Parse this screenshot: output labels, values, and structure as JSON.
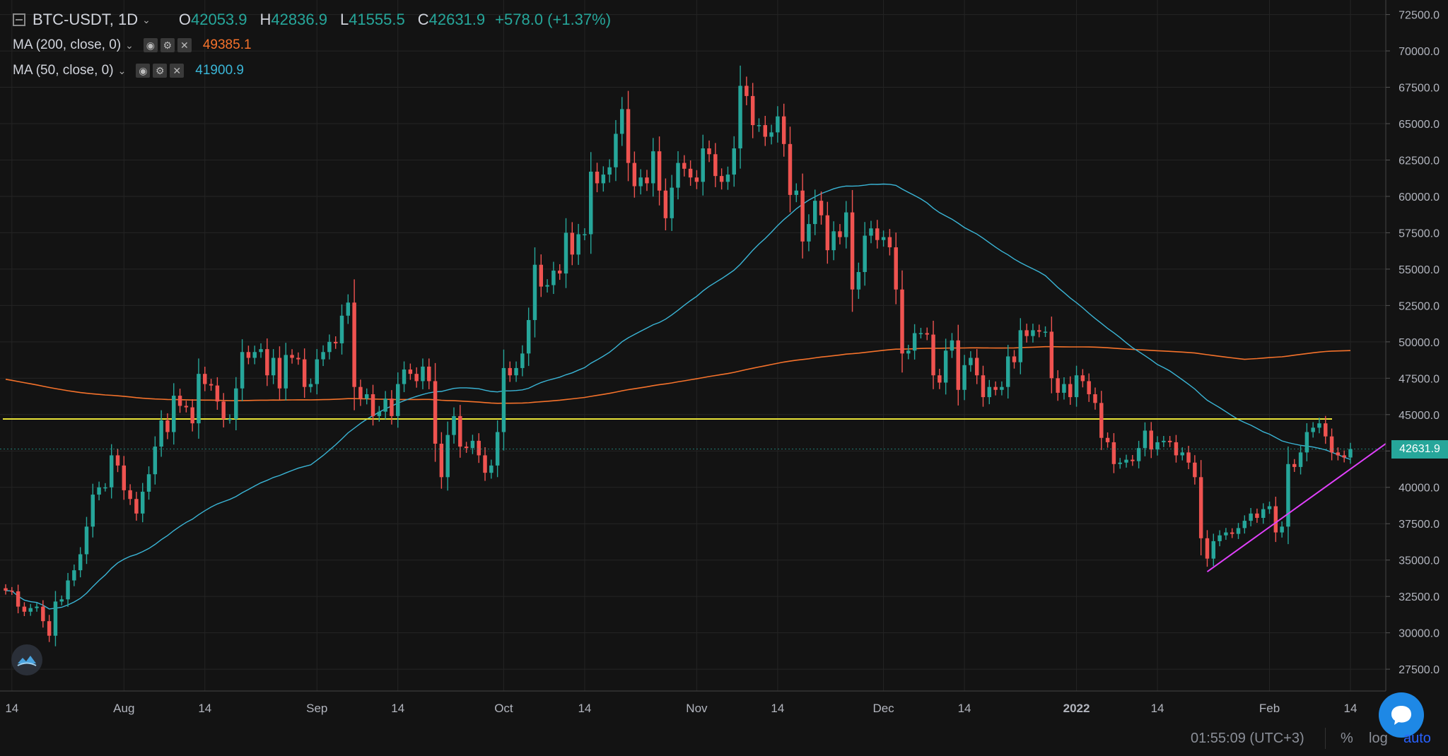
{
  "header": {
    "symbol": "BTC-USDT, 1D",
    "ohlc": [
      {
        "label": "O",
        "value": "42053.9"
      },
      {
        "label": "H",
        "value": "42836.9"
      },
      {
        "label": "L",
        "value": "41555.5"
      },
      {
        "label": "C",
        "value": "42631.9"
      }
    ],
    "change": "+578.0 (+1.37%)"
  },
  "indicators": [
    {
      "label": "MA (200, close, 0)",
      "value": "49385.1",
      "color": "#f5722b"
    },
    {
      "label": "MA (50, close, 0)",
      "value": "41900.9",
      "color": "#3ab5d6"
    }
  ],
  "last_price_tag": "42631.9",
  "footer": {
    "time": "01:55:09 (UTC+3)",
    "percent_label": "%",
    "log_label": "log",
    "auto_label": "auto"
  },
  "colors": {
    "up": "#26a69a",
    "down": "#ef5350",
    "background": "#131313",
    "ma200": "#f5722b",
    "ma50": "#3ab5d6",
    "level": "#e8e337",
    "trendline": "#e040fb"
  },
  "icons": {
    "logo": "app-logo-icon",
    "chat": "chat-bubble-icon",
    "settings": "gear-icon"
  },
  "chart_data": {
    "type": "candlestick",
    "timeframe": "1D",
    "x_tick_labels": [
      "14",
      "Aug",
      "14",
      "Sep",
      "14",
      "Oct",
      "14",
      "Nov",
      "14",
      "Dec",
      "14",
      "2022",
      "14",
      "Feb",
      "14"
    ],
    "x_tick_dates": [
      "2021-07-14",
      "2021-08-01",
      "2021-08-14",
      "2021-09-01",
      "2021-09-14",
      "2021-10-01",
      "2021-10-14",
      "2021-11-01",
      "2021-11-14",
      "2021-12-01",
      "2021-12-14",
      "2022-01-01",
      "2022-01-14",
      "2022-02-01",
      "2022-02-14"
    ],
    "y_tick_labels": [
      "27500.0",
      "30000.0",
      "32500.0",
      "35000.0",
      "37500.0",
      "40000.0",
      "42500.0",
      "45000.0",
      "47500.0",
      "50000.0",
      "52500.0",
      "55000.0",
      "57500.0",
      "60000.0",
      "62500.0",
      "65000.0",
      "67500.0",
      "70000.0",
      "72500.0"
    ],
    "ylim": [
      26000,
      73500
    ],
    "horizontal_level": 44700,
    "last_close": 42631.9,
    "closes": [
      [
        "2021-07-13",
        32900
      ],
      [
        "2021-07-14",
        32850
      ],
      [
        "2021-07-15",
        31800
      ],
      [
        "2021-07-16",
        31450
      ],
      [
        "2021-07-17",
        31700
      ],
      [
        "2021-07-18",
        31800
      ],
      [
        "2021-07-19",
        30800
      ],
      [
        "2021-07-20",
        29800
      ],
      [
        "2021-07-21",
        32150
      ],
      [
        "2021-07-22",
        32300
      ],
      [
        "2021-07-23",
        33600
      ],
      [
        "2021-07-24",
        34300
      ],
      [
        "2021-07-25",
        35400
      ],
      [
        "2021-07-26",
        37300
      ],
      [
        "2021-07-27",
        39500
      ],
      [
        "2021-07-28",
        40000
      ],
      [
        "2021-07-29",
        40000
      ],
      [
        "2021-07-30",
        42200
      ],
      [
        "2021-07-31",
        41500
      ],
      [
        "2021-08-01",
        39800
      ],
      [
        "2021-08-02",
        39200
      ],
      [
        "2021-08-03",
        38200
      ],
      [
        "2021-08-04",
        39700
      ],
      [
        "2021-08-05",
        40900
      ],
      [
        "2021-08-06",
        42800
      ],
      [
        "2021-08-07",
        44600
      ],
      [
        "2021-08-08",
        43800
      ],
      [
        "2021-08-09",
        46300
      ],
      [
        "2021-08-10",
        45600
      ],
      [
        "2021-08-11",
        45500
      ],
      [
        "2021-08-12",
        44400
      ],
      [
        "2021-08-13",
        47800
      ],
      [
        "2021-08-14",
        47100
      ],
      [
        "2021-08-15",
        47000
      ],
      [
        "2021-08-16",
        45900
      ],
      [
        "2021-08-17",
        44700
      ],
      [
        "2021-08-18",
        44700
      ],
      [
        "2021-08-19",
        46800
      ],
      [
        "2021-08-20",
        49300
      ],
      [
        "2021-08-21",
        48900
      ],
      [
        "2021-08-22",
        49300
      ],
      [
        "2021-08-23",
        49500
      ],
      [
        "2021-08-24",
        47700
      ],
      [
        "2021-08-25",
        48900
      ],
      [
        "2021-08-26",
        46800
      ],
      [
        "2021-08-27",
        49100
      ],
      [
        "2021-08-28",
        48900
      ],
      [
        "2021-08-29",
        48800
      ],
      [
        "2021-08-30",
        46900
      ],
      [
        "2021-08-31",
        47100
      ],
      [
        "2021-09-01",
        48800
      ],
      [
        "2021-09-02",
        49300
      ],
      [
        "2021-09-03",
        50000
      ],
      [
        "2021-09-04",
        49900
      ],
      [
        "2021-09-05",
        51800
      ],
      [
        "2021-09-06",
        52700
      ],
      [
        "2021-09-07",
        46900
      ],
      [
        "2021-09-08",
        46100
      ],
      [
        "2021-09-09",
        46400
      ],
      [
        "2021-09-10",
        44900
      ],
      [
        "2021-09-11",
        45200
      ],
      [
        "2021-09-12",
        46100
      ],
      [
        "2021-09-13",
        44900
      ],
      [
        "2021-09-14",
        47100
      ],
      [
        "2021-09-15",
        48100
      ],
      [
        "2021-09-16",
        47800
      ],
      [
        "2021-09-17",
        47300
      ],
      [
        "2021-09-18",
        48300
      ],
      [
        "2021-09-19",
        47300
      ],
      [
        "2021-09-20",
        43000
      ],
      [
        "2021-09-21",
        40700
      ],
      [
        "2021-09-22",
        43600
      ],
      [
        "2021-09-23",
        44900
      ],
      [
        "2021-09-24",
        42800
      ],
      [
        "2021-09-25",
        42700
      ],
      [
        "2021-09-26",
        43200
      ],
      [
        "2021-09-27",
        42200
      ],
      [
        "2021-09-28",
        41000
      ],
      [
        "2021-09-29",
        41500
      ],
      [
        "2021-09-30",
        43800
      ],
      [
        "2021-10-01",
        48200
      ],
      [
        "2021-10-02",
        47700
      ],
      [
        "2021-10-03",
        48200
      ],
      [
        "2021-10-04",
        49200
      ],
      [
        "2021-10-05",
        51500
      ],
      [
        "2021-10-06",
        55300
      ],
      [
        "2021-10-07",
        53800
      ],
      [
        "2021-10-08",
        53900
      ],
      [
        "2021-10-09",
        54900
      ],
      [
        "2021-10-10",
        54700
      ],
      [
        "2021-10-11",
        57500
      ],
      [
        "2021-10-12",
        56000
      ],
      [
        "2021-10-13",
        57400
      ],
      [
        "2021-10-14",
        57400
      ],
      [
        "2021-10-15",
        61700
      ],
      [
        "2021-10-16",
        60900
      ],
      [
        "2021-10-17",
        61500
      ],
      [
        "2021-10-18",
        62000
      ],
      [
        "2021-10-19",
        64300
      ],
      [
        "2021-10-20",
        66000
      ],
      [
        "2021-10-21",
        62300
      ],
      [
        "2021-10-22",
        60700
      ],
      [
        "2021-10-23",
        61300
      ],
      [
        "2021-10-24",
        60900
      ],
      [
        "2021-10-25",
        63100
      ],
      [
        "2021-10-26",
        60400
      ],
      [
        "2021-10-27",
        58500
      ],
      [
        "2021-10-28",
        60600
      ],
      [
        "2021-10-29",
        62300
      ],
      [
        "2021-10-30",
        61900
      ],
      [
        "2021-10-31",
        61300
      ],
      [
        "2021-11-01",
        61000
      ],
      [
        "2021-11-02",
        63300
      ],
      [
        "2021-11-03",
        62900
      ],
      [
        "2021-11-04",
        61400
      ],
      [
        "2021-11-05",
        61000
      ],
      [
        "2021-11-06",
        61500
      ],
      [
        "2021-11-07",
        63300
      ],
      [
        "2021-11-08",
        67600
      ],
      [
        "2021-11-09",
        66900
      ],
      [
        "2021-11-10",
        64900
      ],
      [
        "2021-11-11",
        64900
      ],
      [
        "2021-11-12",
        64100
      ],
      [
        "2021-11-13",
        64400
      ],
      [
        "2021-11-14",
        65500
      ],
      [
        "2021-11-15",
        63600
      ],
      [
        "2021-11-16",
        60100
      ],
      [
        "2021-11-17",
        60400
      ],
      [
        "2021-11-18",
        56900
      ],
      [
        "2021-11-19",
        58100
      ],
      [
        "2021-11-20",
        59700
      ],
      [
        "2021-11-21",
        58700
      ],
      [
        "2021-11-22",
        56300
      ],
      [
        "2021-11-23",
        57600
      ],
      [
        "2021-11-24",
        57200
      ],
      [
        "2021-11-25",
        58900
      ],
      [
        "2021-11-26",
        53600
      ],
      [
        "2021-11-27",
        54800
      ],
      [
        "2021-11-28",
        57300
      ],
      [
        "2021-11-29",
        57800
      ],
      [
        "2021-11-30",
        57000
      ],
      [
        "2021-12-01",
        57200
      ],
      [
        "2021-12-02",
        56500
      ],
      [
        "2021-12-03",
        53600
      ],
      [
        "2021-12-04",
        49200
      ],
      [
        "2021-12-05",
        49400
      ],
      [
        "2021-12-06",
        50600
      ],
      [
        "2021-12-07",
        50600
      ],
      [
        "2021-12-08",
        50500
      ],
      [
        "2021-12-09",
        47700
      ],
      [
        "2021-12-10",
        47200
      ],
      [
        "2021-12-11",
        49400
      ],
      [
        "2021-12-12",
        50100
      ],
      [
        "2021-12-13",
        46700
      ],
      [
        "2021-12-14",
        48400
      ],
      [
        "2021-12-15",
        48900
      ],
      [
        "2021-12-16",
        47700
      ],
      [
        "2021-12-17",
        46200
      ],
      [
        "2021-12-18",
        46900
      ],
      [
        "2021-12-19",
        46700
      ],
      [
        "2021-12-20",
        46900
      ],
      [
        "2021-12-21",
        49000
      ],
      [
        "2021-12-22",
        48600
      ],
      [
        "2021-12-23",
        50800
      ],
      [
        "2021-12-24",
        50400
      ],
      [
        "2021-12-25",
        50800
      ],
      [
        "2021-12-26",
        50700
      ],
      [
        "2021-12-27",
        50700
      ],
      [
        "2021-12-28",
        47500
      ],
      [
        "2021-12-29",
        46500
      ],
      [
        "2021-12-30",
        47100
      ],
      [
        "2021-12-31",
        46200
      ],
      [
        "2022-01-01",
        47700
      ],
      [
        "2022-01-02",
        47300
      ],
      [
        "2022-01-03",
        46400
      ],
      [
        "2022-01-04",
        45800
      ],
      [
        "2022-01-05",
        43400
      ],
      [
        "2022-01-06",
        43100
      ],
      [
        "2022-01-07",
        41600
      ],
      [
        "2022-01-08",
        41700
      ],
      [
        "2022-01-09",
        41900
      ],
      [
        "2022-01-10",
        41800
      ],
      [
        "2022-01-11",
        42700
      ],
      [
        "2022-01-12",
        43900
      ],
      [
        "2022-01-13",
        42600
      ],
      [
        "2022-01-14",
        43100
      ],
      [
        "2022-01-15",
        43200
      ],
      [
        "2022-01-16",
        43100
      ],
      [
        "2022-01-17",
        42200
      ],
      [
        "2022-01-18",
        42400
      ],
      [
        "2022-01-19",
        41700
      ],
      [
        "2022-01-20",
        40700
      ],
      [
        "2022-01-21",
        36500
      ],
      [
        "2022-01-22",
        35100
      ],
      [
        "2022-01-23",
        36300
      ],
      [
        "2022-01-24",
        36700
      ],
      [
        "2022-01-25",
        36900
      ],
      [
        "2022-01-26",
        36800
      ],
      [
        "2022-01-27",
        37200
      ],
      [
        "2022-01-28",
        37700
      ],
      [
        "2022-01-29",
        38200
      ],
      [
        "2022-01-30",
        37900
      ],
      [
        "2022-01-31",
        38500
      ],
      [
        "2022-02-01",
        38700
      ],
      [
        "2022-02-02",
        36900
      ],
      [
        "2022-02-03",
        37300
      ],
      [
        "2022-02-04",
        41600
      ],
      [
        "2022-02-05",
        41400
      ],
      [
        "2022-02-06",
        42400
      ],
      [
        "2022-02-07",
        43800
      ],
      [
        "2022-02-08",
        44100
      ],
      [
        "2022-02-09",
        44400
      ],
      [
        "2022-02-10",
        43500
      ],
      [
        "2022-02-11",
        42400
      ],
      [
        "2022-02-12",
        42200
      ],
      [
        "2022-02-13",
        42050
      ],
      [
        "2022-02-14",
        42632
      ]
    ]
  }
}
